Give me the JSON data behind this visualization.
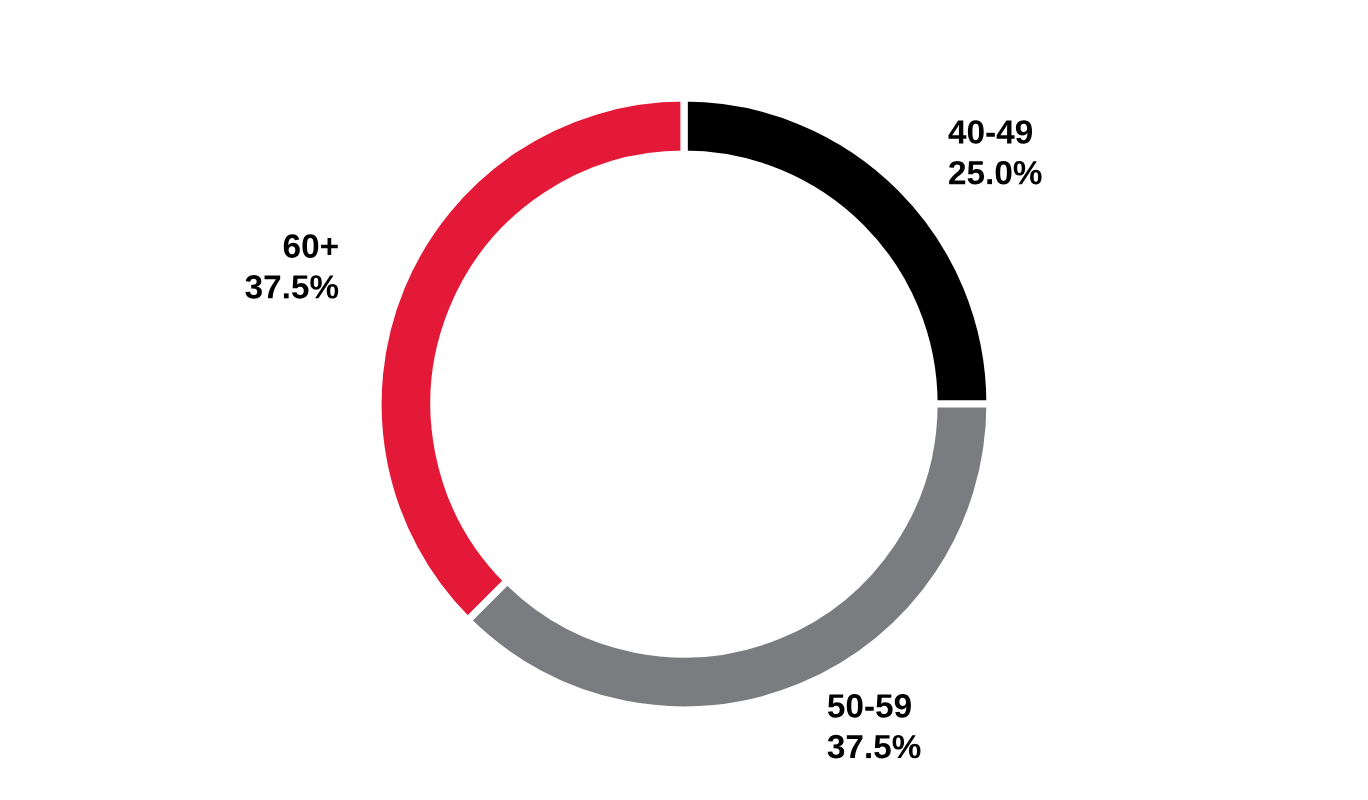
{
  "chart_data": {
    "type": "donut",
    "categories": [
      "40-49",
      "50-59",
      "60+"
    ],
    "values": [
      25.0,
      37.5,
      37.5
    ],
    "colors": [
      "#000000",
      "#7a7c7f",
      "#e31937"
    ],
    "value_labels": [
      "25.0%",
      "37.5%",
      "37.5%"
    ]
  }
}
